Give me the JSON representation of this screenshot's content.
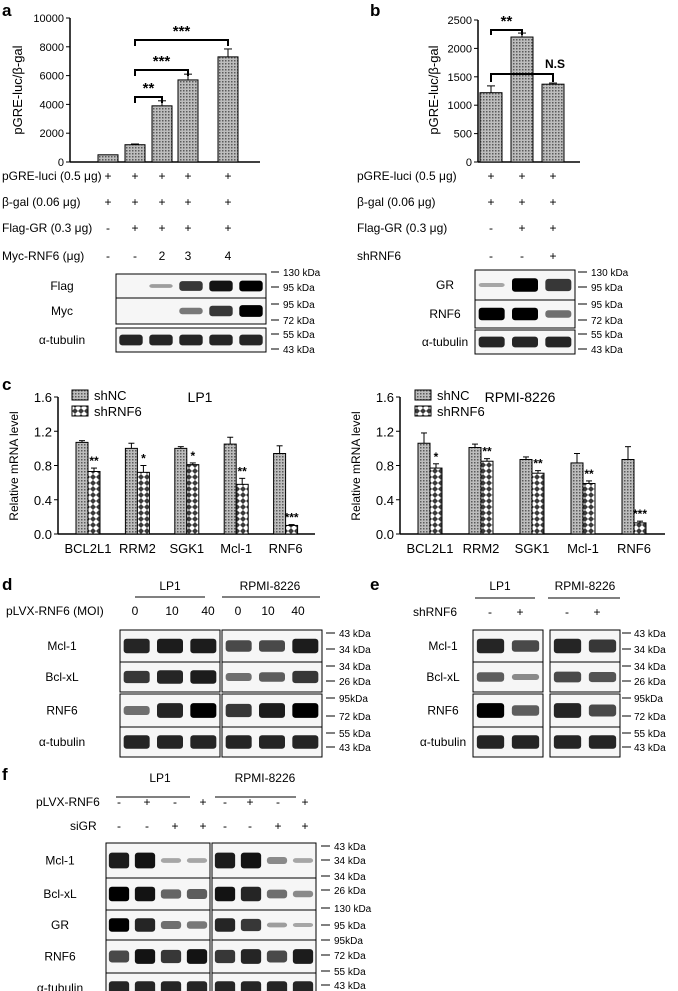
{
  "panels": {
    "a": {
      "letter": "a",
      "chart_data": {
        "type": "bar",
        "ylabel": "pGRE-luc/β-gal",
        "ylim": [
          0,
          10000
        ],
        "yticks": [
          "0",
          "2000",
          "4000",
          "6000",
          "8000",
          "10000"
        ],
        "values": [
          500,
          1200,
          3900,
          5700,
          7300
        ],
        "errors": [
          0,
          50,
          350,
          400,
          550
        ],
        "significance": [
          {
            "from": 1,
            "to": 2,
            "label": "**"
          },
          {
            "from": 1,
            "to": 3,
            "label": "***"
          },
          {
            "from": 1,
            "to": 4,
            "label": "***"
          }
        ]
      },
      "conditions": [
        {
          "label": "pGRE-luci (0.5 μg)",
          "marks": [
            "+",
            "+",
            "+",
            "+",
            "+"
          ]
        },
        {
          "label": "β-gal (0.06 μg)",
          "marks": [
            "+",
            "+",
            "+",
            "+",
            "+"
          ]
        },
        {
          "label": "Flag-GR (0.3 μg)",
          "marks": [
            "-",
            "+",
            "+",
            "+",
            "+"
          ]
        },
        {
          "label": "Myc-RNF6 (μg)",
          "marks": [
            "-",
            "-",
            "2",
            "3",
            "4"
          ]
        }
      ],
      "blots": [
        "Flag",
        "Myc",
        "α-tubulin"
      ],
      "markers": [
        "130 kDa",
        "95 kDa",
        "95 kDa",
        "72 kDa",
        "55 kDa",
        "43 kDa"
      ]
    },
    "b": {
      "letter": "b",
      "chart_data": {
        "type": "bar",
        "ylabel": "pGRE-luc/β-gal",
        "ylim": [
          0,
          2500
        ],
        "yticks": [
          "0",
          "500",
          "1000",
          "1500",
          "2000",
          "2500"
        ],
        "values": [
          1220,
          2200,
          1370
        ],
        "errors": [
          120,
          70,
          20
        ],
        "significance": [
          {
            "from": 0,
            "to": 1,
            "label": "**"
          },
          {
            "from": 0,
            "to": 2,
            "label": "N.S"
          }
        ]
      },
      "conditions": [
        {
          "label": "pGRE-luci (0.5 μg)",
          "marks": [
            "+",
            "+",
            "+"
          ]
        },
        {
          "label": "β-gal (0.06 μg)",
          "marks": [
            "+",
            "+",
            "+"
          ]
        },
        {
          "label": "Flag-GR (0.3 μg)",
          "marks": [
            "-",
            "+",
            "+"
          ]
        },
        {
          "label": "shRNF6",
          "marks": [
            "-",
            "-",
            "+"
          ]
        }
      ],
      "blots": [
        "GR",
        "RNF6",
        "α-tubulin"
      ],
      "markers": [
        "130 kDa",
        "95 kDa",
        "95 kDa",
        "72 kDa",
        "55 kDa",
        "43 kDa"
      ]
    },
    "c": {
      "letter": "c",
      "charts": [
        {
          "type": "bar",
          "title": "LP1",
          "ylabel": "Relative mRNA  level",
          "ylim": [
            0,
            1.6
          ],
          "yticks": [
            "0.0",
            "0.4",
            "0.8",
            "1.2",
            "1.6"
          ],
          "categories": [
            "BCL2L1",
            "RRM2",
            "SGK1",
            "Mcl-1",
            "RNF6"
          ],
          "series": [
            {
              "name": "shNC",
              "values": [
                1.07,
                1.0,
                1.0,
                1.05,
                0.94
              ],
              "errors": [
                0.02,
                0.06,
                0.02,
                0.08,
                0.09
              ]
            },
            {
              "name": "shRNF6",
              "values": [
                0.73,
                0.72,
                0.81,
                0.58,
                0.1
              ],
              "errors": [
                0.04,
                0.08,
                0.02,
                0.07,
                0.01
              ]
            }
          ],
          "stars": [
            "**",
            "*",
            "*",
            "**",
            "***"
          ]
        },
        {
          "type": "bar",
          "title": "RPMI-8226",
          "ylabel": "Relative mRNA  level",
          "ylim": [
            0,
            1.6
          ],
          "yticks": [
            "0.0",
            "0.4",
            "0.8",
            "1.2",
            "1.6"
          ],
          "categories": [
            "BCL2L1",
            "RRM2",
            "SGK1",
            "Mcl-1",
            "RNF6"
          ],
          "series": [
            {
              "name": "shNC",
              "values": [
                1.06,
                1.01,
                0.87,
                0.83,
                0.87
              ],
              "errors": [
                0.12,
                0.04,
                0.03,
                0.11,
                0.15
              ]
            },
            {
              "name": "shRNF6",
              "values": [
                0.77,
                0.85,
                0.71,
                0.59,
                0.13
              ],
              "errors": [
                0.05,
                0.03,
                0.03,
                0.03,
                0.02
              ]
            }
          ],
          "stars": [
            "*",
            "**",
            "**",
            "**",
            "***"
          ]
        }
      ]
    },
    "d": {
      "letter": "d",
      "cell_lines": [
        "LP1",
        "RPMI-8226"
      ],
      "treatment": "pLVX-RNF6 (MOI)",
      "doses": [
        "0",
        "10",
        "40",
        "0",
        "10",
        "40"
      ],
      "blots": [
        "Mcl-1",
        "Bcl-xL",
        "RNF6",
        "α-tubulin"
      ],
      "markers": [
        "43 kDa",
        "34 kDa",
        "34 kDa",
        "26 kDa",
        "95kDa",
        "72 kDa",
        "55 kDa",
        "43 kDa"
      ]
    },
    "e": {
      "letter": "e",
      "cell_lines": [
        "LP1",
        "RPMI-8226"
      ],
      "treatment": "shRNF6",
      "marks": [
        "-",
        "+",
        "-",
        "+"
      ],
      "blots": [
        "Mcl-1",
        "Bcl-xL",
        "RNF6",
        "α-tubulin"
      ],
      "markers": [
        "43 kDa",
        "34 kDa",
        "34 kDa",
        "26 kDa",
        "95kDa",
        "72 kDa",
        "55 kDa",
        "43 kDa"
      ]
    },
    "f": {
      "letter": "f",
      "cell_lines": [
        "LP1",
        "RPMI-8226"
      ],
      "rows": [
        {
          "label": "pLVX-RNF6",
          "marks": [
            "-",
            "+",
            "-",
            "+",
            "-",
            "+",
            "-",
            "+"
          ]
        },
        {
          "label": "siGR",
          "marks": [
            "-",
            "-",
            "+",
            "+",
            "-",
            "-",
            "+",
            "+"
          ]
        }
      ],
      "blots": [
        "Mcl-1",
        "Bcl-xL",
        "GR",
        "RNF6",
        "α-tubulin"
      ],
      "markers": [
        "43 kDa",
        "34 kDa",
        "34 kDa",
        "26 kDa",
        "130 kDa",
        "95 kDa",
        "95kDa",
        "72 kDa",
        "55 kDa",
        "43 kDa"
      ]
    }
  }
}
